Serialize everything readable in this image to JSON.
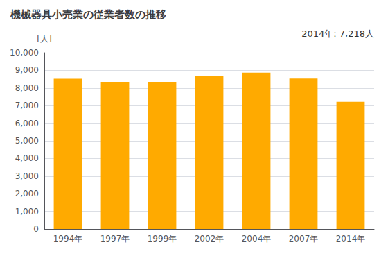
{
  "chart_data": {
    "type": "bar",
    "title": "機械器具小売業の従業者数の推移",
    "ylabel": "[人]",
    "annotation": "2014年: 7,218人",
    "categories": [
      "1994年",
      "1997年",
      "1999年",
      "2002年",
      "2004年",
      "2007年",
      "2014年"
    ],
    "values": [
      8520,
      8350,
      8350,
      8700,
      8870,
      8530,
      7218
    ],
    "color": "#FFAA00",
    "ylim": [
      0,
      10000
    ],
    "yticks": [
      0,
      {
        "value": 1000,
        "label": "1,000"
      },
      {
        "value": 2000,
        "label": "2,000"
      },
      {
        "value": 3000,
        "label": "3,000"
      },
      {
        "value": 4000,
        "label": "4,000"
      },
      {
        "value": 5000,
        "label": "5,000"
      },
      {
        "value": 6000,
        "label": "6,000"
      },
      {
        "value": 7000,
        "label": "7,000"
      },
      {
        "value": 8000,
        "label": "8,000"
      },
      {
        "value": 9000,
        "label": "9,000"
      },
      {
        "value": 10000,
        "label": "10,000"
      }
    ],
    "grid": true
  }
}
